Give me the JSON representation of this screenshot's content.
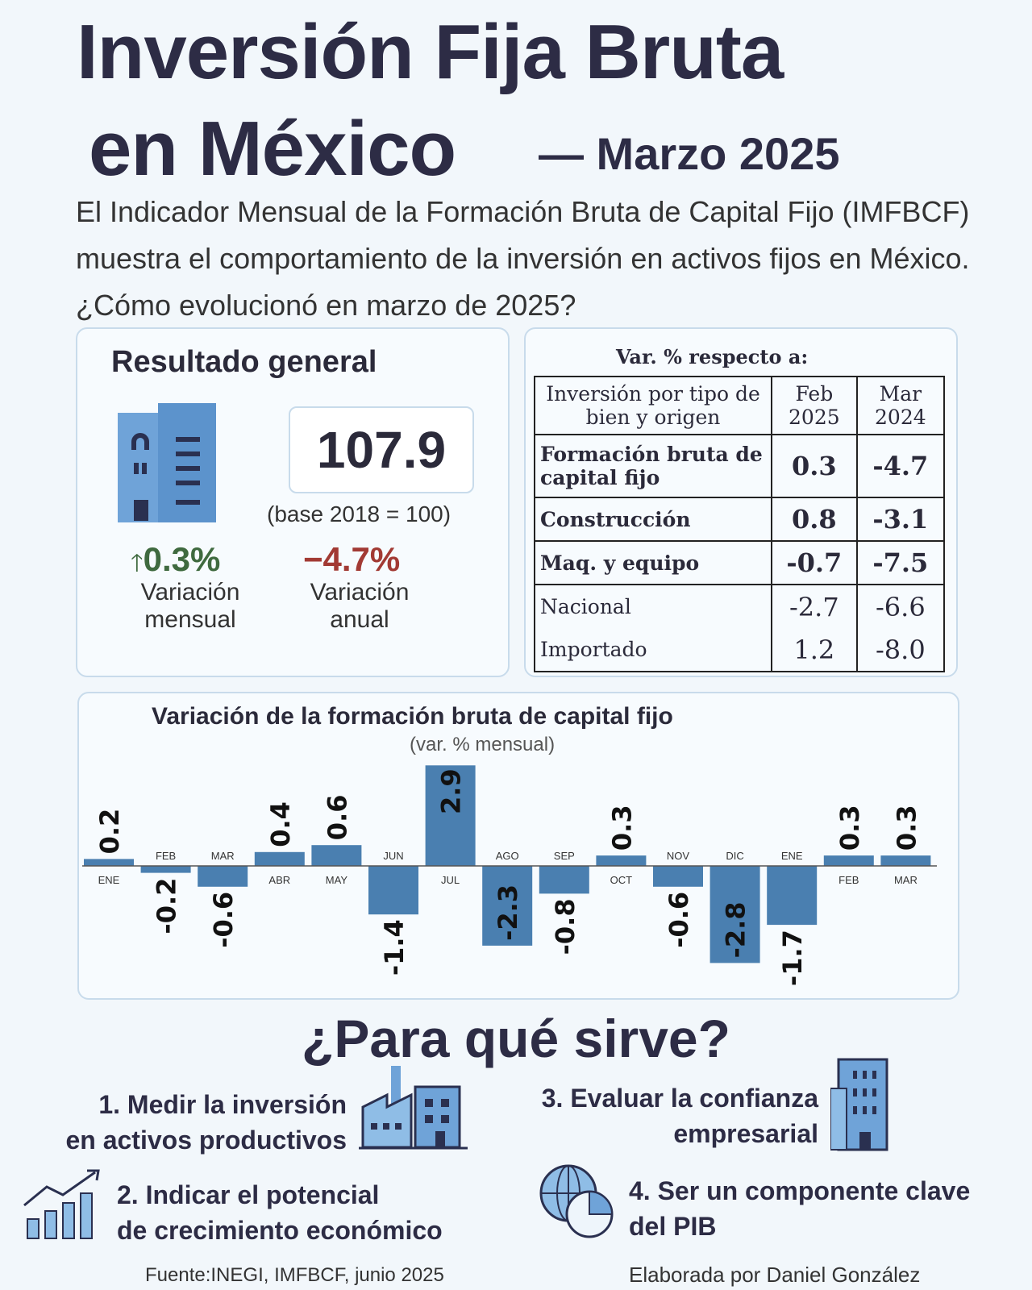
{
  "header": {
    "title_line1": "Inversión Fija Bruta",
    "title_line2": "en México",
    "title_suffix": "— Marzo 2025",
    "intro": "El Indicador Mensual de la Formación Bruta de Capital Fijo (IMFBCF) muestra el comportamiento de la inversión en activos fijos en México. ¿Cómo evolucionó en marzo de 2025?"
  },
  "general": {
    "title": "Resultado general",
    "index": "107.9",
    "base": "(base 2018 = 100)",
    "monthly": {
      "value": "0.3%",
      "label1": "Variación",
      "label2": "mensual",
      "arrow": "arrow-up-icon"
    },
    "annual": {
      "value": "−4.7%",
      "label1": "Variación",
      "label2": "anual"
    }
  },
  "table": {
    "title": "Var. % respecto a:",
    "col0": "Inversión por tipo de bien y origen",
    "col1": "Feb 2025",
    "col2": "Mar 2024",
    "rows": [
      {
        "label": "Formación bruta de capital fijo",
        "feb": "0.3",
        "mar": "-4.7",
        "bold": true
      },
      {
        "label": "Construcción",
        "feb": "0.8",
        "mar": "-3.1",
        "bold": true
      },
      {
        "label": "Maq. y equipo",
        "feb": "-0.7",
        "mar": "-7.5",
        "bold": true
      },
      {
        "label": "Nacional",
        "feb": "-2.7",
        "mar": "-6.6",
        "bold": false
      },
      {
        "label": "Importado",
        "feb": "1.2",
        "mar": "-8.0",
        "bold": false
      }
    ]
  },
  "chart_data": {
    "type": "bar",
    "title": "Variación de la formación bruta de capital fijo",
    "subtitle": "(var. % mensual)",
    "categories": [
      "ENE",
      "FEB",
      "MAR",
      "ABR",
      "MAY",
      "JUN",
      "JUL",
      "AGO",
      "SEP",
      "OCT",
      "NOV",
      "DIC",
      "ENE",
      "FEB",
      "MAR"
    ],
    "values": [
      0.2,
      -0.2,
      -0.6,
      0.4,
      0.6,
      -1.4,
      2.9,
      -2.3,
      -0.8,
      0.3,
      -0.6,
      -2.8,
      -1.7,
      0.3,
      0.3
    ],
    "value_labels": [
      "0.2",
      "-0.2",
      "-0.6",
      "0.4",
      "0.6",
      "-1.4",
      "2.9",
      "-2.3",
      "-0.8",
      "0.3",
      "-0.6",
      "-2.8",
      "-1.7",
      "0.3",
      "0.3"
    ],
    "bar_color": "#4a7fb0",
    "ylim": [
      -3,
      3
    ],
    "grid": false,
    "legend": "none",
    "xlabel": "",
    "ylabel": ""
  },
  "uses": {
    "title": "¿Para qué sirve?",
    "items": [
      {
        "line1": "1. Medir la inversión",
        "line2": "en activos productivos",
        "icon": "factory-icon"
      },
      {
        "line1": "2. Indicar el potencial",
        "line2": "de crecimiento económico",
        "icon": "growth-chart-icon"
      },
      {
        "line1": "3. Evaluar la confianza",
        "line2": "empresarial",
        "icon": "office-building-icon"
      },
      {
        "line1": "4. Ser un componente clave",
        "line2": "del PIB",
        "icon": "globe-pie-icon"
      }
    ]
  },
  "footer": {
    "source": "Fuente:INEGI, IMFBCF, junio 2025",
    "author": "Elaborada por Daniel González"
  }
}
